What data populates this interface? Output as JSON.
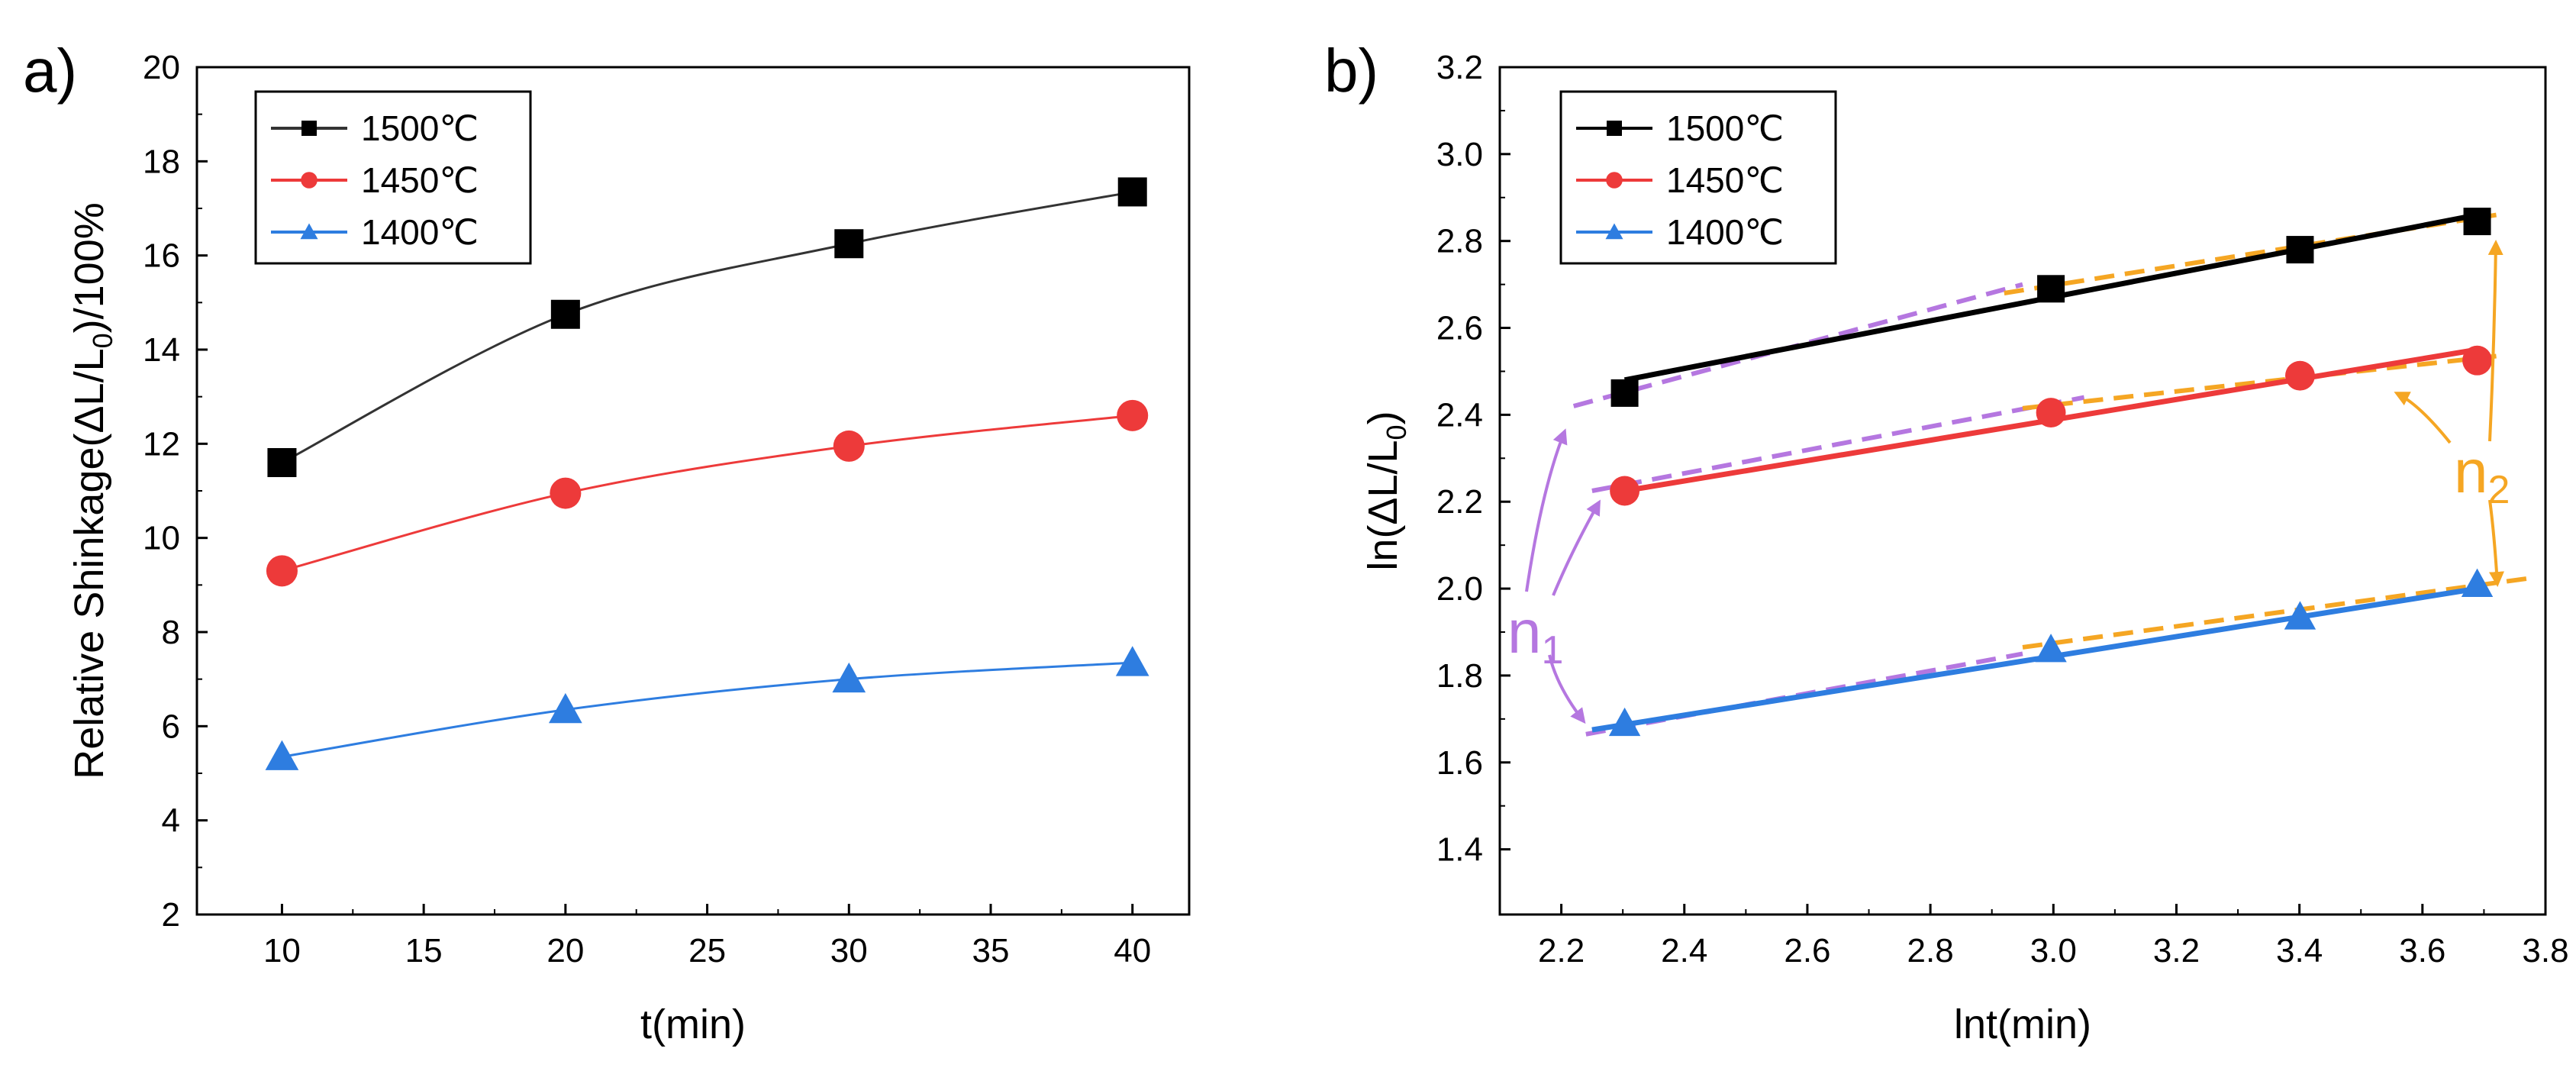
{
  "chart_data": [
    {
      "panel": "a)",
      "type": "line",
      "xlabel": "t(min)",
      "ylabel": "Relative Shinkage(ΔL/L0)/100%",
      "ylabel_parts": {
        "main": "Relative Shinkage(ΔL/L",
        "sub": "0",
        "tail": ")/100%"
      },
      "xlim": [
        7,
        42
      ],
      "ylim": [
        2,
        20
      ],
      "xticks": [
        10,
        15,
        20,
        25,
        30,
        35,
        40
      ],
      "yticks": [
        2,
        4,
        6,
        8,
        10,
        12,
        14,
        16,
        18,
        20
      ],
      "legend_position": "top-left",
      "series": [
        {
          "name": "1500℃",
          "color": "#000000",
          "line_color": "#333333",
          "marker": "square",
          "x": [
            10,
            20,
            30,
            40
          ],
          "y": [
            11.6,
            14.75,
            16.25,
            17.35
          ]
        },
        {
          "name": "1450℃",
          "color": "#ed3a3a",
          "line_color": "#ed3a3a",
          "marker": "circle",
          "x": [
            10,
            20,
            30,
            40
          ],
          "y": [
            9.3,
            10.95,
            11.95,
            12.6
          ]
        },
        {
          "name": "1400℃",
          "color": "#2e7de0",
          "line_color": "#2e7de0",
          "marker": "triangle",
          "x": [
            10,
            20,
            30,
            40
          ],
          "y": [
            5.35,
            6.35,
            7.0,
            7.35
          ]
        }
      ]
    },
    {
      "panel": "b)",
      "type": "scatter",
      "xlabel": "lnt(min)",
      "ylabel": "ln(ΔL/L0)",
      "ylabel_parts": {
        "main": "ln(ΔL/L",
        "sub": "0",
        "tail": ")"
      },
      "xlim": [
        2.1,
        3.8
      ],
      "ylim": [
        1.25,
        3.2
      ],
      "xticks": [
        2.2,
        2.4,
        2.6,
        2.8,
        3.0,
        3.2,
        3.4,
        3.6,
        3.8
      ],
      "yticks": [
        1.4,
        1.6,
        1.8,
        2.0,
        2.2,
        2.4,
        2.6,
        2.8,
        3.0,
        3.2
      ],
      "legend_position": "top-left",
      "series": [
        {
          "name": "1500℃",
          "color": "#000000",
          "marker": "square",
          "x": [
            2.303,
            2.996,
            3.401,
            3.689
          ],
          "y": [
            2.45,
            2.69,
            2.78,
            2.845
          ],
          "fit": [
            [
              2.303,
              2.48
            ],
            [
              3.689,
              2.86
            ]
          ]
        },
        {
          "name": "1450℃",
          "color": "#ed3a3a",
          "marker": "circle",
          "x": [
            2.303,
            2.996,
            3.401,
            3.689
          ],
          "y": [
            2.225,
            2.405,
            2.49,
            2.525
          ],
          "fit": [
            [
              2.303,
              2.225
            ],
            [
              3.689,
              2.55
            ]
          ]
        },
        {
          "name": "1400℃",
          "color": "#2e7de0",
          "marker": "triangle",
          "x": [
            2.303,
            2.996,
            3.401,
            3.689
          ],
          "y": [
            1.69,
            1.86,
            1.935,
            2.01
          ],
          "fit": [
            [
              2.25,
              1.675
            ],
            [
              3.689,
              2.0
            ]
          ]
        }
      ],
      "dashed_fits": {
        "n1_color": "#b577e0",
        "n2_color": "#f5a623",
        "n1": [
          [
            [
              2.22,
              2.42
            ],
            [
              2.95,
              2.7
            ]
          ],
          [
            [
              2.25,
              2.225
            ],
            [
              3.05,
              2.44
            ]
          ],
          [
            [
              2.24,
              1.665
            ],
            [
              2.95,
              1.85
            ]
          ]
        ],
        "n2": [
          [
            [
              2.92,
              2.68
            ],
            [
              3.72,
              2.86
            ]
          ],
          [
            [
              2.95,
              2.415
            ],
            [
              3.72,
              2.535
            ]
          ],
          [
            [
              2.95,
              1.865
            ],
            [
              3.78,
              2.025
            ]
          ]
        ]
      },
      "annotations": [
        {
          "label": "n",
          "sub": "1",
          "color": "#b577e0"
        },
        {
          "label": "n",
          "sub": "2",
          "color": "#f5a623"
        }
      ]
    }
  ]
}
